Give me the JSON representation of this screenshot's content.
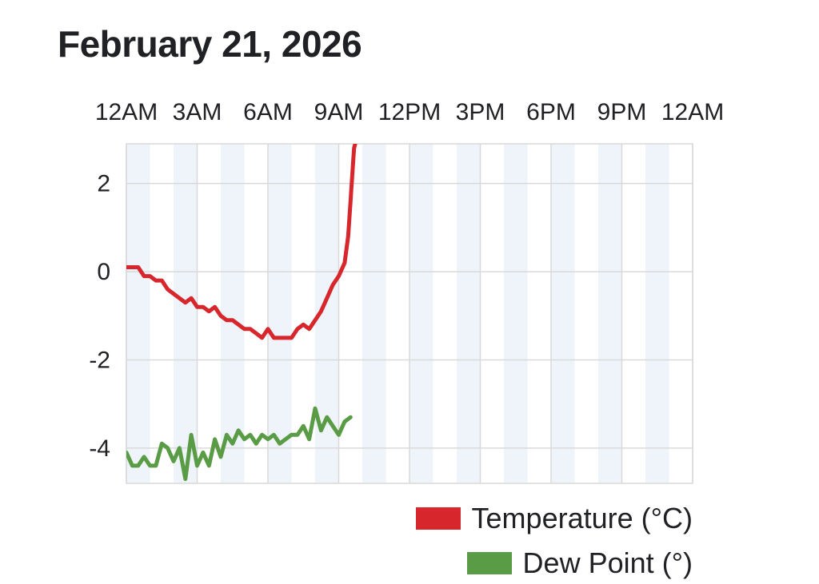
{
  "page": {
    "title": "February 21, 2026"
  },
  "colors": {
    "temperature": "#d7262c",
    "dew_point": "#5a9c45",
    "band": "#eef4fa",
    "grid": "#d9d9d9"
  },
  "chart_data": {
    "type": "line",
    "title": "February 21, 2026",
    "x_tick_labels": [
      "12AM",
      "3AM",
      "6AM",
      "9AM",
      "12PM",
      "3PM",
      "6PM",
      "9PM",
      "12AM"
    ],
    "xlim": [
      0,
      24
    ],
    "ylim": [
      -4.8,
      2.9
    ],
    "y_ticks": [
      2,
      0,
      -2,
      -4
    ],
    "y_tick_labels": [
      "2",
      "0",
      "-2",
      "-4"
    ],
    "grid": true,
    "legend_position": "bottom-right",
    "series": [
      {
        "name": "Temperature (°C)",
        "color_key": "temperature",
        "x": [
          0,
          0.25,
          0.5,
          0.75,
          1.0,
          1.25,
          1.5,
          1.75,
          2.0,
          2.25,
          2.5,
          2.75,
          3.0,
          3.25,
          3.5,
          3.75,
          4.0,
          4.25,
          4.5,
          4.75,
          5.0,
          5.25,
          5.5,
          5.75,
          6.0,
          6.25,
          6.5,
          6.75,
          7.0,
          7.25,
          7.5,
          7.75,
          8.0,
          8.25,
          8.5,
          8.75,
          9.0,
          9.25,
          9.4,
          9.5,
          9.6,
          9.65,
          9.7
        ],
        "y": [
          0.1,
          0.1,
          0.1,
          -0.1,
          -0.1,
          -0.2,
          -0.2,
          -0.4,
          -0.5,
          -0.6,
          -0.7,
          -0.6,
          -0.8,
          -0.8,
          -0.9,
          -0.8,
          -1.0,
          -1.1,
          -1.1,
          -1.2,
          -1.3,
          -1.3,
          -1.4,
          -1.5,
          -1.3,
          -1.5,
          -1.5,
          -1.5,
          -1.5,
          -1.3,
          -1.2,
          -1.3,
          -1.1,
          -0.9,
          -0.6,
          -0.3,
          -0.1,
          0.2,
          0.8,
          1.6,
          2.4,
          2.8,
          2.9
        ]
      },
      {
        "name": "Dew Point (°)",
        "color_key": "dew_point",
        "x": [
          0,
          0.25,
          0.5,
          0.75,
          1.0,
          1.25,
          1.5,
          1.75,
          2.0,
          2.25,
          2.5,
          2.75,
          3.0,
          3.25,
          3.5,
          3.75,
          4.0,
          4.25,
          4.5,
          4.75,
          5.0,
          5.25,
          5.5,
          5.75,
          6.0,
          6.25,
          6.5,
          6.75,
          7.0,
          7.25,
          7.5,
          7.75,
          8.0,
          8.25,
          8.5,
          8.75,
          9.0,
          9.25,
          9.5
        ],
        "y": [
          -4.1,
          -4.4,
          -4.4,
          -4.2,
          -4.4,
          -4.4,
          -3.9,
          -4.0,
          -4.3,
          -4.0,
          -4.7,
          -3.7,
          -4.4,
          -4.1,
          -4.4,
          -3.8,
          -4.2,
          -3.7,
          -3.9,
          -3.6,
          -3.8,
          -3.7,
          -3.9,
          -3.7,
          -3.8,
          -3.7,
          -3.9,
          -3.8,
          -3.7,
          -3.7,
          -3.5,
          -3.8,
          -3.1,
          -3.6,
          -3.3,
          -3.5,
          -3.7,
          -3.4,
          -3.3
        ]
      }
    ]
  }
}
